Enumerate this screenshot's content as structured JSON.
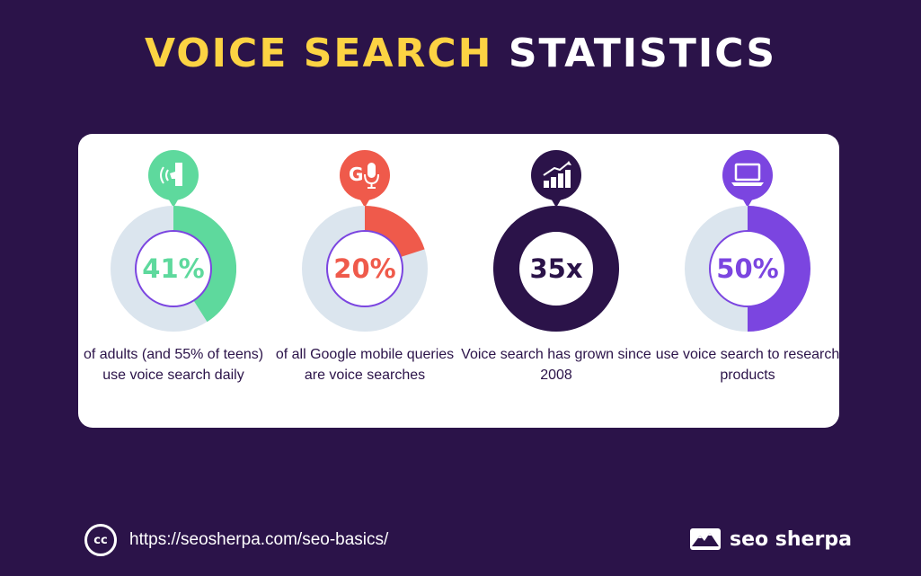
{
  "title": {
    "part1": "VOICE SEARCH",
    "part2": "STATISTICS"
  },
  "chart_data": {
    "type": "pie",
    "items": [
      {
        "value_label": "41%",
        "fraction": 0.41,
        "description": "of adults (and 55% of teens) use voice search daily",
        "color": "#5ed99d",
        "icon": "voice-assistant-icon"
      },
      {
        "value_label": "20%",
        "fraction": 0.2,
        "description": "of all Google mobile queries are voice searches",
        "color": "#ef5a4b",
        "icon": "google-mic-icon"
      },
      {
        "value_label": "35x",
        "fraction": 1.0,
        "description": "Voice search has grown since 2008",
        "color": "#2b1349",
        "icon": "growth-chart-icon"
      },
      {
        "value_label": "50%",
        "fraction": 0.5,
        "description": "use voice search to research products",
        "color": "#7b45e0",
        "icon": "laptop-icon"
      }
    ]
  },
  "colors": {
    "background": "#2b1349",
    "track": "#dbe5ee",
    "title_accent": "#fcd343",
    "inner_border": "#7b45e0"
  },
  "footer": {
    "url": "https://seosherpa.com/seo-basics/",
    "license_icon": "cc",
    "brand": "seo sherpa"
  }
}
